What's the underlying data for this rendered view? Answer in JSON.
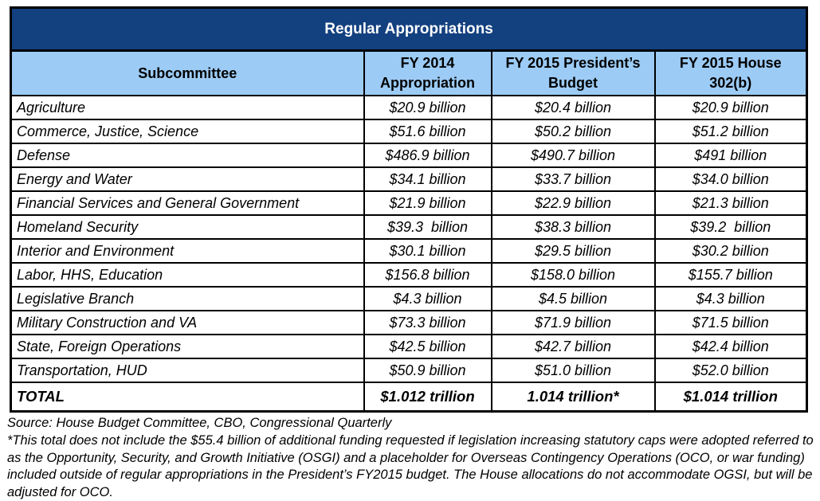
{
  "colors": {
    "title_bg": "#13407F",
    "header_bg": "#9CCBF5",
    "border": "#000000",
    "title_text": "#FFFFFF",
    "body_text": "#000000"
  },
  "chart_data": {
    "type": "table",
    "title": "Regular Appropriations",
    "columns": [
      "Subcommittee",
      "FY 2014 Appropriation",
      "FY 2015 President’s Budget",
      "FY 2015 House 302(b)"
    ],
    "rows": [
      [
        "Agriculture",
        "$20.9 billion",
        "$20.4 billion",
        "$20.9 billion"
      ],
      [
        "Commerce, Justice, Science",
        "$51.6 billion",
        "$50.2 billion",
        "$51.2 billion"
      ],
      [
        "Defense",
        "$486.9 billion",
        "$490.7 billion",
        "$491 billion"
      ],
      [
        "Energy and Water",
        "$34.1 billion",
        "$33.7 billion",
        "$34.0 billion"
      ],
      [
        "Financial Services and General Government",
        "$21.9 billion",
        "$22.9 billion",
        "$21.3 billion"
      ],
      [
        "Homeland Security",
        "$39.3  billion",
        "$38.3 billion",
        "$39.2  billion"
      ],
      [
        "Interior and Environment",
        "$30.1 billion",
        "$29.5 billion",
        "$30.2 billion"
      ],
      [
        "Labor, HHS, Education",
        "$156.8 billion",
        "$158.0 billion",
        "$155.7 billion"
      ],
      [
        "Legislative Branch",
        "$4.3 billion",
        "$4.5 billion",
        "$4.3 billion"
      ],
      [
        "Military Construction and VA",
        "$73.3 billion",
        "$71.9 billion",
        "$71.5 billion"
      ],
      [
        "State, Foreign Operations",
        "$42.5 billion",
        "$42.7 billion",
        "$42.4 billion"
      ],
      [
        "Transportation, HUD",
        "$50.9 billion",
        "$51.0 billion",
        "$52.0 billion"
      ]
    ],
    "total_row": [
      "TOTAL",
      "$1.012 trillion",
      "1.014 trillion*",
      "$1.014 trillion"
    ],
    "source": "Source: House Budget Committee, CBO, Congressional Quarterly",
    "footnote": "*This total does not include the $55.4 billion of additional funding requested if legislation increasing statutory caps were adopted referred to as the Opportunity, Security, and Growth Initiative (OSGI) and a placeholder for Overseas Contingency Operations (OCO, or war funding) included outside of regular appropriations in the President’s FY2015 budget. The House allocations do not accommodate OGSI, but will be adjusted for OCO."
  }
}
